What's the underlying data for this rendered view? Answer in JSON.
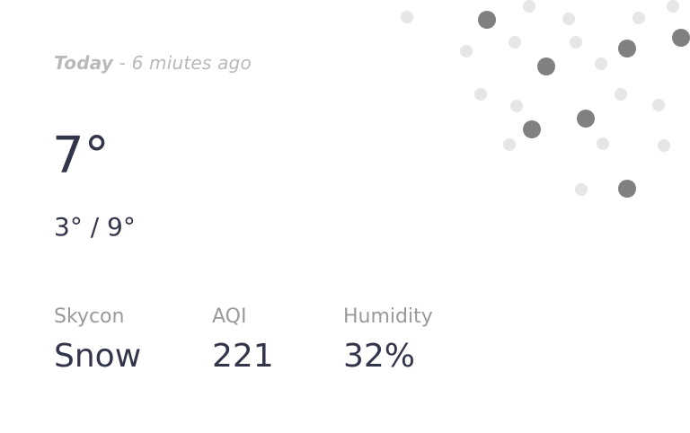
{
  "weather": {
    "updated_day": "Today",
    "updated_ago": " - 6 miutes ago",
    "temperature": "7°",
    "range": "3° / 9°",
    "stats": [
      {
        "label": "Skycon",
        "value": "Snow"
      },
      {
        "label": "AQI",
        "value": "221"
      },
      {
        "label": "Humidity",
        "value": "32%"
      }
    ]
  },
  "decoration": {
    "icon": "snowfall-dots",
    "colors": {
      "light": "#e6e6e6",
      "dark": "#808080"
    }
  }
}
